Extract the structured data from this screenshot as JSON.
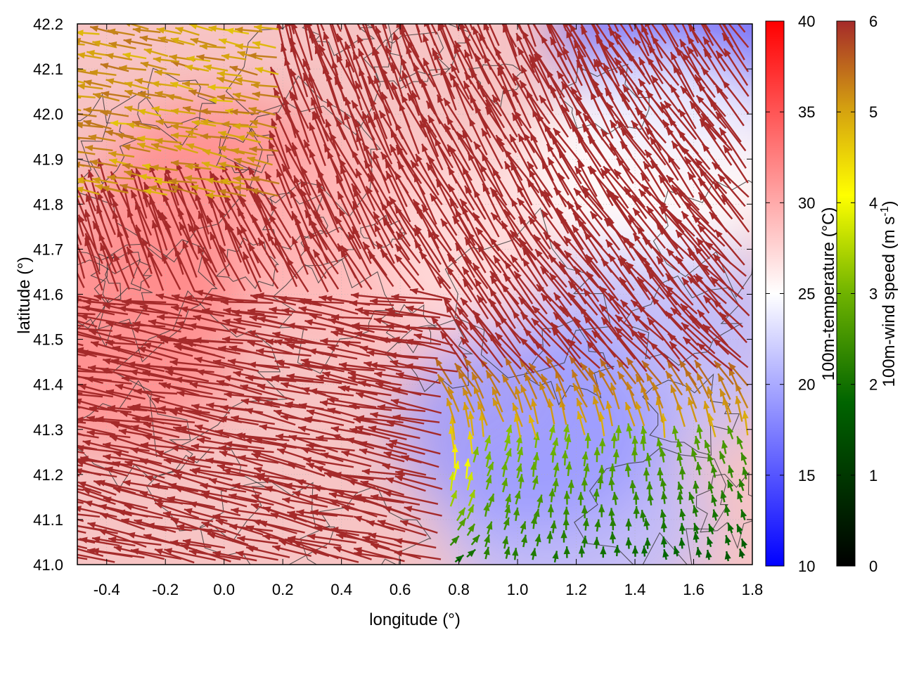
{
  "chart_data": {
    "type": "heatmap",
    "subtype": "wind-vector field over temperature map with contours",
    "xlabel": "longitude (°)",
    "ylabel": "latitude (°)",
    "xlim": [
      -0.5,
      1.8
    ],
    "ylim": [
      41.0,
      42.2
    ],
    "x_ticks": [
      "-0.4",
      "-0.2",
      "0.0",
      "0.2",
      "0.4",
      "0.6",
      "0.8",
      "1.0",
      "1.2",
      "1.4",
      "1.6",
      "1.8"
    ],
    "x_tick_values": [
      -0.4,
      -0.2,
      0.0,
      0.2,
      0.4,
      0.6,
      0.8,
      1.0,
      1.2,
      1.4,
      1.6,
      1.8
    ],
    "y_ticks": [
      "41.0",
      "41.1",
      "41.2",
      "41.3",
      "41.4",
      "41.5",
      "41.6",
      "41.7",
      "41.8",
      "41.9",
      "42.0",
      "42.1",
      "42.2"
    ],
    "y_tick_values": [
      41.0,
      41.1,
      41.2,
      41.3,
      41.4,
      41.5,
      41.6,
      41.7,
      41.8,
      41.9,
      42.0,
      42.1,
      42.2
    ],
    "grid": true,
    "temperature_colorbar": {
      "label": "100m-temperature (°C)",
      "range": [
        10,
        40
      ],
      "ticks": [
        "10",
        "15",
        "20",
        "25",
        "30",
        "35",
        "40"
      ],
      "tick_values": [
        10,
        15,
        20,
        25,
        30,
        35,
        40
      ],
      "colors": [
        "#0000ff",
        "#ffffff",
        "#ff0000"
      ]
    },
    "wind_colorbar": {
      "label": "100m-wind speed (m s",
      "label_sup": "-1",
      "label_end": ")",
      "range": [
        0,
        6
      ],
      "ticks": [
        "0",
        "1",
        "2",
        "3",
        "4",
        "5",
        "6"
      ],
      "tick_values": [
        0,
        1,
        2,
        3,
        4,
        5,
        6
      ],
      "colors": [
        "#000000",
        "#006400",
        "#6fb300",
        "#ffff00",
        "#d4a010",
        "#b86a20",
        "#a52a2a"
      ]
    },
    "temperature_regions": [
      {
        "lon": -0.4,
        "lat": 41.5,
        "temp": 32
      },
      {
        "lon": 0.0,
        "lat": 41.8,
        "temp": 32
      },
      {
        "lon": 0.5,
        "lat": 41.7,
        "temp": 29
      },
      {
        "lon": 1.0,
        "lat": 41.7,
        "temp": 27
      },
      {
        "lon": 1.5,
        "lat": 41.5,
        "temp": 21
      },
      {
        "lon": 1.2,
        "lat": 41.1,
        "temp": 21
      },
      {
        "lon": 1.6,
        "lat": 42.15,
        "temp": 16
      },
      {
        "lon": 1.05,
        "lat": 41.3,
        "temp": 19
      },
      {
        "lon": 1.5,
        "lat": 41.9,
        "temp": 25
      }
    ],
    "wind_field": {
      "description_regions": [
        {
          "lon_range": [
            -0.5,
            0.8
          ],
          "lat_range": [
            41.0,
            41.6
          ],
          "direction": "from east (westward)",
          "speed": 6
        },
        {
          "lon_range": [
            0.8,
            1.8
          ],
          "lat_range": [
            41.45,
            42.2
          ],
          "direction": "from southeast (northwestward)",
          "speed": 6
        },
        {
          "lon_range": [
            0.85,
            1.8
          ],
          "lat_range": [
            41.0,
            41.25
          ],
          "direction": "from south (northward)",
          "speed": 1.5
        },
        {
          "lon_range": [
            -0.5,
            0.2
          ],
          "lat_range": [
            41.8,
            42.2
          ],
          "direction": "from east",
          "speed": 4
        }
      ]
    }
  }
}
